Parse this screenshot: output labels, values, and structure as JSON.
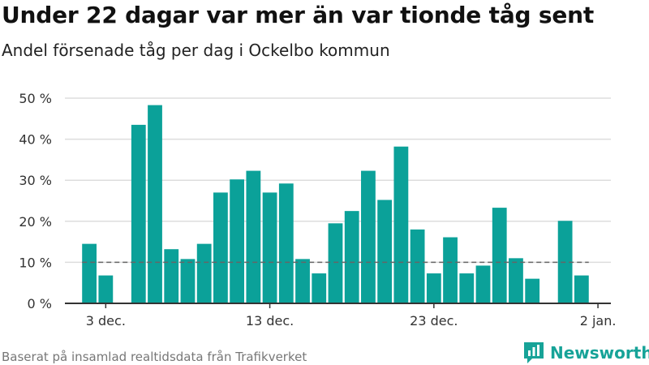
{
  "title": "Under 22 dagar var mer än var tionde tåg sent",
  "subtitle": "Andel försenade tåg per dag i Ockelbo kommun",
  "source": "Baserat på insamlad realtidsdata från Trafikverket",
  "brand": {
    "name": "Newsworthy",
    "icon": "newsworthy-logo-icon",
    "color": "#17a398"
  },
  "colors": {
    "bar": "#0ba199",
    "reference": "#666666",
    "grid": "#dddddd",
    "axis": "#333333"
  },
  "chart_data": {
    "type": "bar",
    "x": [
      "2023-12-02",
      "2023-12-03",
      "2023-12-04",
      "2023-12-05",
      "2023-12-06",
      "2023-12-07",
      "2023-12-08",
      "2023-12-09",
      "2023-12-10",
      "2023-12-11",
      "2023-12-12",
      "2023-12-13",
      "2023-12-14",
      "2023-12-15",
      "2023-12-16",
      "2023-12-17",
      "2023-12-18",
      "2023-12-19",
      "2023-12-20",
      "2023-12-21",
      "2023-12-22",
      "2023-12-23",
      "2023-12-24",
      "2023-12-25",
      "2023-12-26",
      "2023-12-27",
      "2023-12-28",
      "2023-12-29",
      "2023-12-30",
      "2023-12-31",
      "2024-01-01"
    ],
    "values": [
      14.5,
      6.8,
      0,
      43.5,
      48.3,
      13.2,
      10.8,
      14.5,
      27,
      30.2,
      32.3,
      27,
      29.2,
      10.8,
      7.3,
      19.5,
      22.5,
      32.3,
      25.2,
      38.2,
      18,
      7.3,
      16.1,
      7.3,
      9.2,
      23.3,
      11,
      6,
      0,
      20.1,
      6.8
    ],
    "reference_line": 10,
    "ylim": [
      0,
      50
    ],
    "yticks": [
      0,
      10,
      20,
      30,
      40,
      50
    ],
    "ytick_labels": [
      "0 %",
      "10 %",
      "20 %",
      "30 %",
      "40 %",
      "50 %"
    ],
    "xticks": [
      "2023-12-03",
      "2023-12-13",
      "2023-12-23",
      "2024-01-02"
    ],
    "xtick_labels": [
      "3 dec.",
      "13 dec.",
      "23 dec.",
      "2 jan."
    ],
    "xlim": [
      "2023-12-02",
      "2024-01-02"
    ],
    "grid": true
  }
}
